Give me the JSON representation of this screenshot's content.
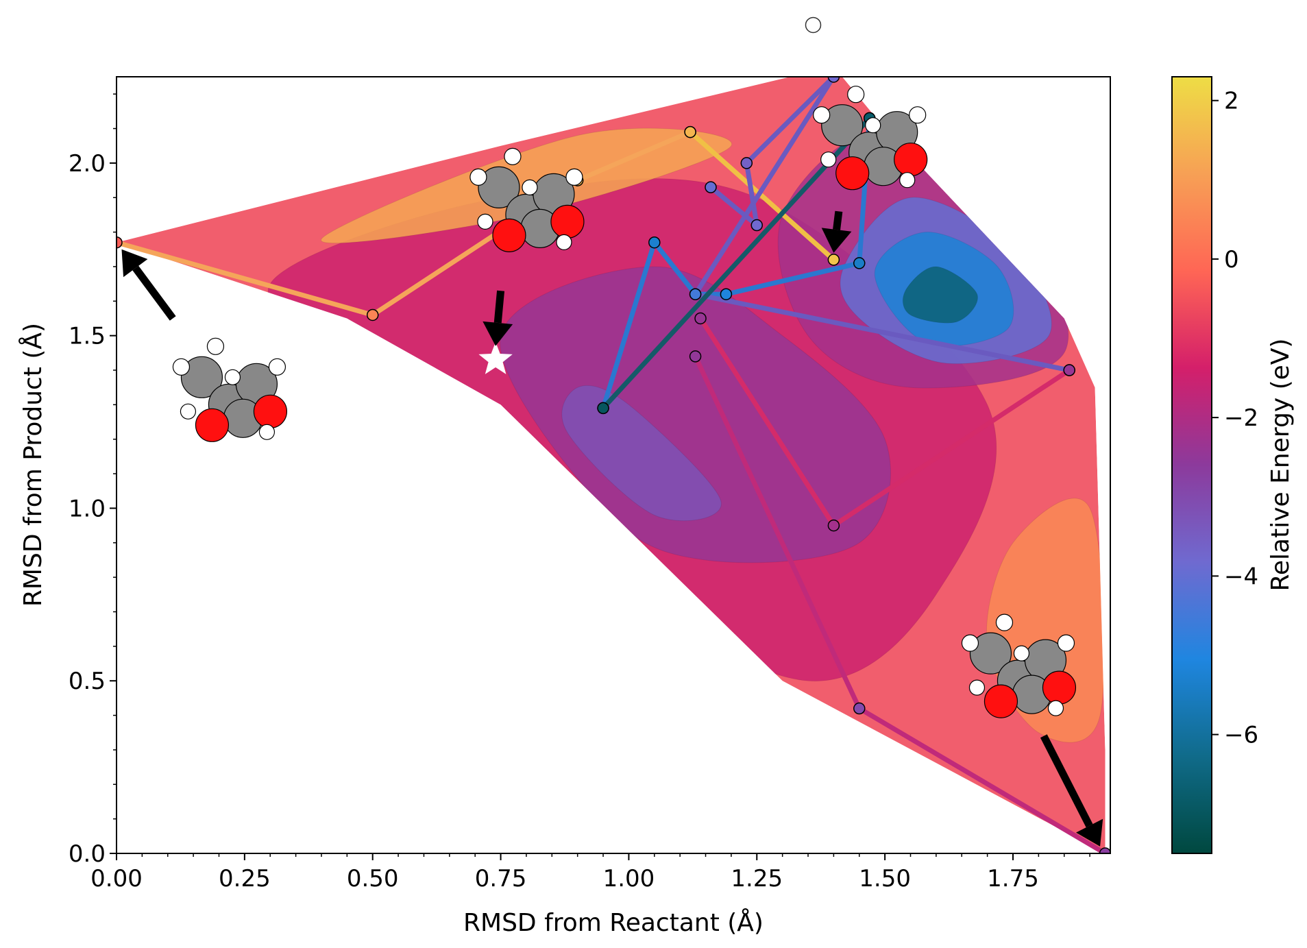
{
  "chart_data": {
    "type": "scatter",
    "title": "",
    "xlabel": "RMSD from Reactant (Å)",
    "ylabel": "RMSD from Product (Å)",
    "xlim": [
      0.0,
      1.94
    ],
    "ylim": [
      0.0,
      2.25
    ],
    "xticks": [
      0.0,
      0.25,
      0.5,
      0.75,
      1.0,
      1.25,
      1.5,
      1.75
    ],
    "xtick_labels": [
      "0.00",
      "0.25",
      "0.50",
      "0.75",
      "1.00",
      "1.25",
      "1.50",
      "1.75"
    ],
    "yticks": [
      0.0,
      0.5,
      1.0,
      1.5,
      2.0
    ],
    "ytick_labels": [
      "0.0",
      "0.5",
      "1.0",
      "1.5",
      "2.0"
    ],
    "grid": false,
    "colorbar": {
      "label": "Relative Energy (eV)",
      "range": [
        -7.5,
        2.3
      ],
      "ticks": [
        2,
        0,
        -2,
        -4,
        -6
      ],
      "tick_labels": [
        "2",
        "0",
        "−2",
        "−4",
        "−6"
      ],
      "stops": [
        "#00483f",
        "#106b8a",
        "#1f86e0",
        "#6f6ad0",
        "#8c3a9c",
        "#d41f6a",
        "#ff6655",
        "#f7a055",
        "#eedd45"
      ]
    },
    "surface": {
      "background_energy": -0.6,
      "domain_vertices": [
        [
          0.0,
          1.77
        ],
        [
          0.75,
          2.05
        ],
        [
          1.4,
          2.28
        ],
        [
          1.5,
          2.1
        ],
        [
          1.85,
          1.55
        ],
        [
          1.91,
          1.35
        ],
        [
          1.93,
          0.3
        ],
        [
          1.93,
          0.0
        ],
        [
          1.3,
          0.5
        ],
        [
          0.75,
          1.3
        ],
        [
          0.45,
          1.55
        ],
        [
          0.0,
          1.77
        ]
      ],
      "contours": [
        {
          "energy": -1.5,
          "points": [
            [
              0.3,
              1.65
            ],
            [
              0.75,
              1.9
            ],
            [
              1.25,
              1.9
            ],
            [
              1.7,
              1.3
            ],
            [
              1.6,
              0.75
            ],
            [
              1.35,
              0.5
            ],
            [
              0.95,
              0.82
            ],
            [
              0.55,
              1.4
            ]
          ]
        },
        {
          "energy": -2.4,
          "points": [
            [
              0.75,
              1.5
            ],
            [
              1.05,
              1.7
            ],
            [
              1.3,
              1.5
            ],
            [
              1.5,
              1.2
            ],
            [
              1.45,
              0.9
            ],
            [
              1.15,
              0.85
            ],
            [
              0.95,
              1.0
            ]
          ]
        },
        {
          "energy": -3.2,
          "points": [
            [
              0.9,
              1.35
            ],
            [
              1.0,
              1.3
            ],
            [
              1.18,
              1.02
            ],
            [
              1.05,
              0.98
            ],
            [
              0.88,
              1.22
            ]
          ]
        },
        {
          "energy": 0.6,
          "points": [
            [
              1.75,
              0.9
            ],
            [
              1.9,
              1.0
            ],
            [
              1.92,
              0.4
            ],
            [
              1.8,
              0.35
            ],
            [
              1.7,
              0.6
            ]
          ]
        },
        {
          "energy": 1.2,
          "points": [
            [
              0.4,
              1.78
            ],
            [
              0.9,
              2.08
            ],
            [
              1.2,
              2.05
            ],
            [
              0.8,
              1.85
            ]
          ]
        },
        {
          "energy": -2.2,
          "points": [
            [
              1.3,
              1.85
            ],
            [
              1.5,
              2.1
            ],
            [
              1.75,
              1.85
            ],
            [
              1.85,
              1.45
            ],
            [
              1.55,
              1.35
            ],
            [
              1.35,
              1.5
            ]
          ]
        },
        {
          "energy": -4.0,
          "points": [
            [
              1.42,
              1.7
            ],
            [
              1.55,
              1.9
            ],
            [
              1.75,
              1.75
            ],
            [
              1.82,
              1.5
            ],
            [
              1.62,
              1.42
            ],
            [
              1.45,
              1.55
            ]
          ]
        },
        {
          "energy": -5.2,
          "points": [
            [
              1.48,
              1.68
            ],
            [
              1.58,
              1.8
            ],
            [
              1.72,
              1.7
            ],
            [
              1.74,
              1.52
            ],
            [
              1.58,
              1.48
            ]
          ]
        },
        {
          "energy": -6.6,
          "points": [
            [
              1.54,
              1.63
            ],
            [
              1.6,
              1.7
            ],
            [
              1.68,
              1.62
            ],
            [
              1.64,
              1.54
            ],
            [
              1.55,
              1.56
            ]
          ]
        }
      ]
    },
    "paths": [
      {
        "name": "path-1",
        "color": "#f5a55a",
        "energies": [
          -0.3,
          0.5,
          1.5,
          0.5
        ],
        "points": [
          [
            0.0,
            1.77
          ],
          [
            0.5,
            1.56
          ],
          [
            0.9,
            1.95
          ],
          [
            1.12,
            2.09
          ]
        ]
      },
      {
        "name": "path-2",
        "color": "#f0c045",
        "energies": [
          1.5,
          1.8
        ],
        "points": [
          [
            1.12,
            2.09
          ],
          [
            1.4,
            1.72
          ]
        ]
      },
      {
        "name": "path-3",
        "color": "#2a78d0",
        "energies": [
          -6.0,
          -5.3,
          -5.0,
          -5.1,
          -5.4,
          -5.0
        ],
        "points": [
          [
            0.95,
            1.29
          ],
          [
            1.05,
            1.77
          ],
          [
            1.13,
            1.62
          ],
          [
            1.19,
            1.62
          ],
          [
            1.45,
            1.71
          ],
          [
            1.47,
            2.13
          ]
        ]
      },
      {
        "name": "path-4",
        "color": "#6a5ac0",
        "energies": [
          -4.0,
          -3.8,
          -3.6,
          -3.8,
          -4.5,
          -4.4
        ],
        "points": [
          [
            1.16,
            1.93
          ],
          [
            1.25,
            1.82
          ],
          [
            1.23,
            2.0
          ],
          [
            1.4,
            2.25
          ],
          [
            1.13,
            1.62
          ],
          [
            1.86,
            1.4
          ]
        ]
      },
      {
        "name": "path-5",
        "color": "#145a68",
        "energies": [
          -7.0,
          -6.8
        ],
        "points": [
          [
            0.95,
            1.29
          ],
          [
            1.47,
            2.13
          ]
        ]
      },
      {
        "name": "path-6",
        "color": "#d42b6a",
        "energies": [
          -2.4,
          -2.2,
          -2.4
        ],
        "points": [
          [
            1.14,
            1.55
          ],
          [
            1.4,
            0.95
          ],
          [
            1.86,
            1.4
          ]
        ]
      },
      {
        "name": "path-7",
        "color": "#c02a7a",
        "energies": [
          -2.5,
          -3.0,
          -2.7
        ],
        "points": [
          [
            1.13,
            1.44
          ],
          [
            1.45,
            0.42
          ],
          [
            1.93,
            0.0
          ]
        ]
      }
    ],
    "markers": [
      {
        "label": "transition-state-star",
        "x": 0.74,
        "y": 1.43,
        "symbol": "star",
        "color": "#ffffff"
      },
      {
        "label": "open-circle-outlier",
        "x": 1.36,
        "y": 2.4,
        "symbol": "circle",
        "color": "#ffffff"
      }
    ],
    "arrows": [
      {
        "name": "arrow-reactant",
        "from": [
          0.11,
          1.55
        ],
        "to": [
          0.01,
          1.75
        ]
      },
      {
        "name": "arrow-star",
        "from": [
          0.75,
          1.63
        ],
        "to": [
          0.74,
          1.47
        ]
      },
      {
        "name": "arrow-saddle",
        "from": [
          1.41,
          1.86
        ],
        "to": [
          1.4,
          1.74
        ]
      },
      {
        "name": "arrow-product",
        "from": [
          1.81,
          0.34
        ],
        "to": [
          1.92,
          0.02
        ]
      }
    ],
    "molecules": [
      {
        "name": "molecule-reactant",
        "x": 0.22,
        "y": 1.32
      },
      {
        "name": "molecule-star",
        "x": 0.8,
        "y": 1.87
      },
      {
        "name": "molecule-saddle",
        "x": 1.47,
        "y": 2.05
      },
      {
        "name": "molecule-product",
        "x": 1.76,
        "y": 0.52
      }
    ]
  }
}
